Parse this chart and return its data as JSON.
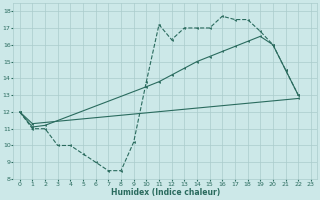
{
  "xlabel": "Humidex (Indice chaleur)",
  "bg_color": "#cce8e8",
  "grid_color": "#aacccc",
  "line_color": "#2a6b5e",
  "xlim": [
    -0.5,
    23.5
  ],
  "ylim": [
    8,
    18.5
  ],
  "xticks": [
    0,
    1,
    2,
    3,
    4,
    5,
    6,
    7,
    8,
    9,
    10,
    11,
    12,
    13,
    14,
    15,
    16,
    17,
    18,
    19,
    20,
    21,
    22,
    23
  ],
  "yticks": [
    8,
    9,
    10,
    11,
    12,
    13,
    14,
    15,
    16,
    17,
    18
  ],
  "line1_x": [
    0,
    1,
    2,
    3,
    4,
    5,
    6,
    7,
    8,
    9,
    10,
    11,
    12,
    13,
    14,
    15,
    16,
    17,
    18,
    19,
    20,
    21,
    22
  ],
  "line1_y": [
    12.0,
    11.0,
    11.0,
    10.0,
    10.0,
    9.5,
    9.0,
    8.5,
    8.5,
    10.2,
    13.8,
    17.2,
    16.3,
    17.0,
    17.0,
    17.0,
    17.7,
    17.5,
    17.5,
    16.8,
    16.0,
    14.5,
    13.0
  ],
  "line2_x": [
    0,
    1,
    22
  ],
  "line2_y": [
    12.0,
    11.3,
    12.8
  ],
  "line3_x": [
    0,
    1,
    2,
    10,
    11,
    12,
    13,
    14,
    15,
    16,
    17,
    18,
    19,
    20,
    21,
    22
  ],
  "line3_y": [
    12.0,
    11.1,
    11.2,
    13.5,
    13.8,
    14.2,
    14.6,
    15.0,
    15.3,
    15.6,
    15.9,
    16.2,
    16.5,
    16.0,
    14.5,
    13.0
  ]
}
